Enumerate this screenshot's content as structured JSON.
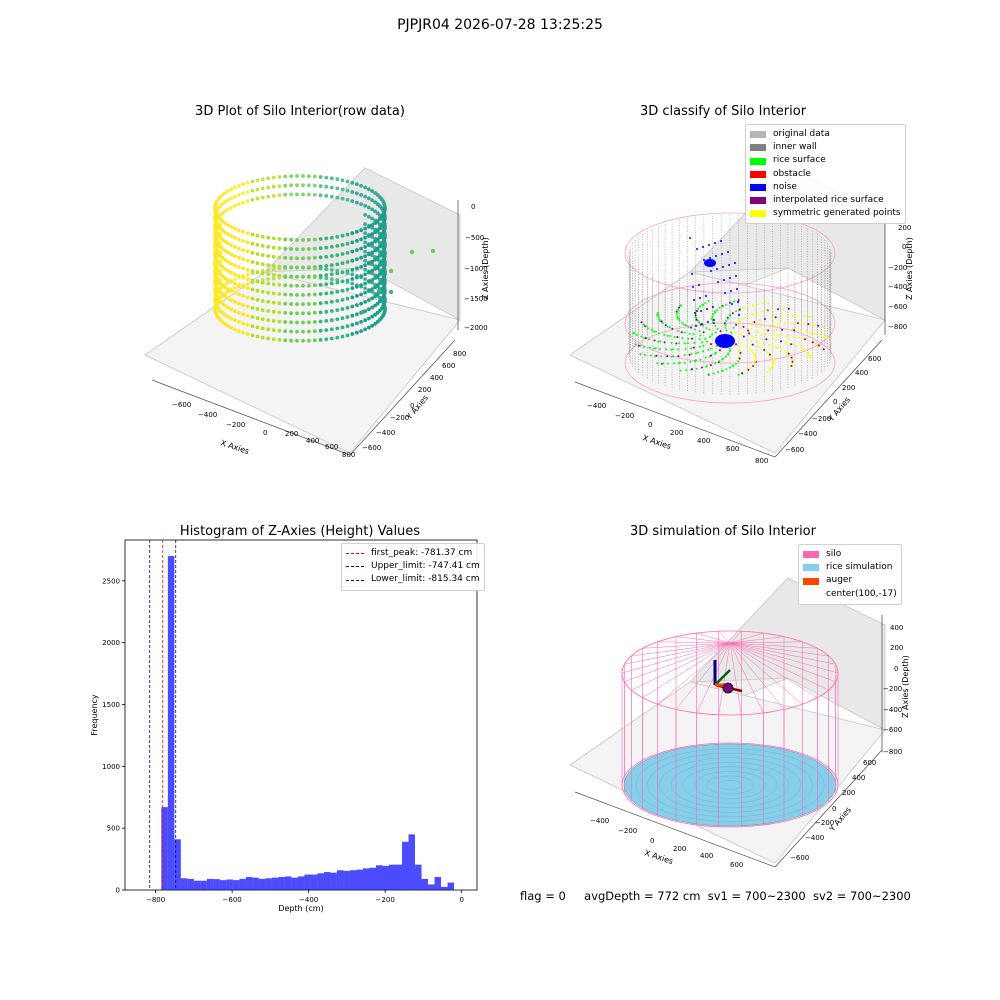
{
  "suptitle": "PJPJR04 2026-07-28 13:25:25",
  "panels": {
    "raw": {
      "title": "3D Plot of Silo Interior(row data)",
      "xlabel": "X Axies",
      "ylabel": "Y Axies",
      "zlabel": "Z Axies (Depth)",
      "xticks": [
        "−600",
        "−400",
        "−200",
        "0",
        "200",
        "400",
        "600",
        "800"
      ],
      "yticks": [
        "−600",
        "−400",
        "−200",
        "0",
        "200",
        "400",
        "600",
        "800"
      ],
      "zticks": [
        "0",
        "−500",
        "−1000",
        "−1500",
        "−2000"
      ]
    },
    "classify": {
      "title": "3D classify of Silo Interior",
      "xlabel": "X Axies",
      "ylabel": "Y Axies",
      "zlabel": "Z Axies (Depth)",
      "xticks": [
        "−400",
        "−200",
        "0",
        "200",
        "400",
        "600",
        "800"
      ],
      "yticks": [
        "−600",
        "−400",
        "−200",
        "0",
        "200",
        "400",
        "600"
      ],
      "zticks": [
        "200",
        "0",
        "−200",
        "−400",
        "−600",
        "−800"
      ],
      "legend": [
        {
          "label": "original data",
          "color": "#b4b4b4"
        },
        {
          "label": "inner wall",
          "color": "#808080"
        },
        {
          "label": "rice surface",
          "color": "#00ff00"
        },
        {
          "label": "obstacle",
          "color": "#ff0000"
        },
        {
          "label": "noise",
          "color": "#0000ff"
        },
        {
          "label": "interpolated rice surface",
          "color": "#800080"
        },
        {
          "label": "symmetric generated points",
          "color": "#ffff00"
        }
      ]
    },
    "simulation": {
      "title": "3D simulation of Silo Interior",
      "xlabel": "X Axies",
      "ylabel": "Y Axies",
      "zlabel": "Z Axies (Depth)",
      "xticks": [
        "−400",
        "−200",
        "0",
        "200",
        "400",
        "600"
      ],
      "yticks": [
        "−600",
        "−400",
        "−200",
        "0",
        "200",
        "400",
        "600"
      ],
      "zticks": [
        "400",
        "200",
        "0",
        "−200",
        "−400",
        "−600",
        "−800"
      ],
      "legend": [
        {
          "label": "silo",
          "color": "#ff69b4"
        },
        {
          "label": "rice simulation",
          "color": "#87ceeb"
        },
        {
          "label": "auger",
          "color": "#ff4500"
        },
        {
          "label": "center(100,-17)",
          "color": ""
        }
      ]
    }
  },
  "status": {
    "flag": "flag = 0",
    "avg_depth": "avgDepth = 772 cm",
    "sv1": "sv1 = 700~2300",
    "sv2": "sv2 = 700~2300"
  },
  "chart_data": [
    {
      "type": "bar",
      "title": "Histogram of Z-Axies (Height) Values",
      "xlabel": "Depth (cm)",
      "ylabel": "Frequency",
      "xlim": [
        -880,
        40
      ],
      "ylim": [
        0,
        2830
      ],
      "xticks": [
        -800,
        -600,
        -400,
        -200,
        0
      ],
      "yticks": [
        0,
        500,
        1000,
        1500,
        2000,
        2500
      ],
      "bin_width": 17,
      "bin_starts": [
        -785,
        -768,
        -751,
        -734,
        -717,
        -700,
        -683,
        -666,
        -649,
        -632,
        -615,
        -598,
        -581,
        -564,
        -547,
        -530,
        -513,
        -496,
        -479,
        -462,
        -445,
        -428,
        -411,
        -394,
        -377,
        -360,
        -343,
        -326,
        -309,
        -292,
        -275,
        -258,
        -241,
        -224,
        -207,
        -190,
        -173,
        -156,
        -139,
        -122,
        -105,
        -88,
        -71,
        -54,
        -37,
        -20,
        -3
      ],
      "values": [
        670,
        2700,
        410,
        95,
        90,
        75,
        75,
        90,
        88,
        80,
        85,
        80,
        90,
        105,
        100,
        90,
        95,
        100,
        105,
        110,
        100,
        110,
        125,
        125,
        135,
        145,
        140,
        160,
        155,
        160,
        165,
        175,
        180,
        200,
        195,
        205,
        205,
        390,
        450,
        205,
        90,
        45,
        105,
        25,
        60,
        0,
        0
      ],
      "color": "#0000ff",
      "alpha": 0.7,
      "vlines": [
        {
          "label": "first_peak: -781.37 cm",
          "value": -781.37,
          "color": "#ff0000"
        },
        {
          "label": "Upper_limit: -747.41 cm",
          "value": -747.41,
          "color": "#0000aa"
        },
        {
          "label": "Lower_limit: -815.34 cm",
          "value": -815.34,
          "color": "#0000aa"
        }
      ],
      "legend_position": "upper right"
    }
  ]
}
